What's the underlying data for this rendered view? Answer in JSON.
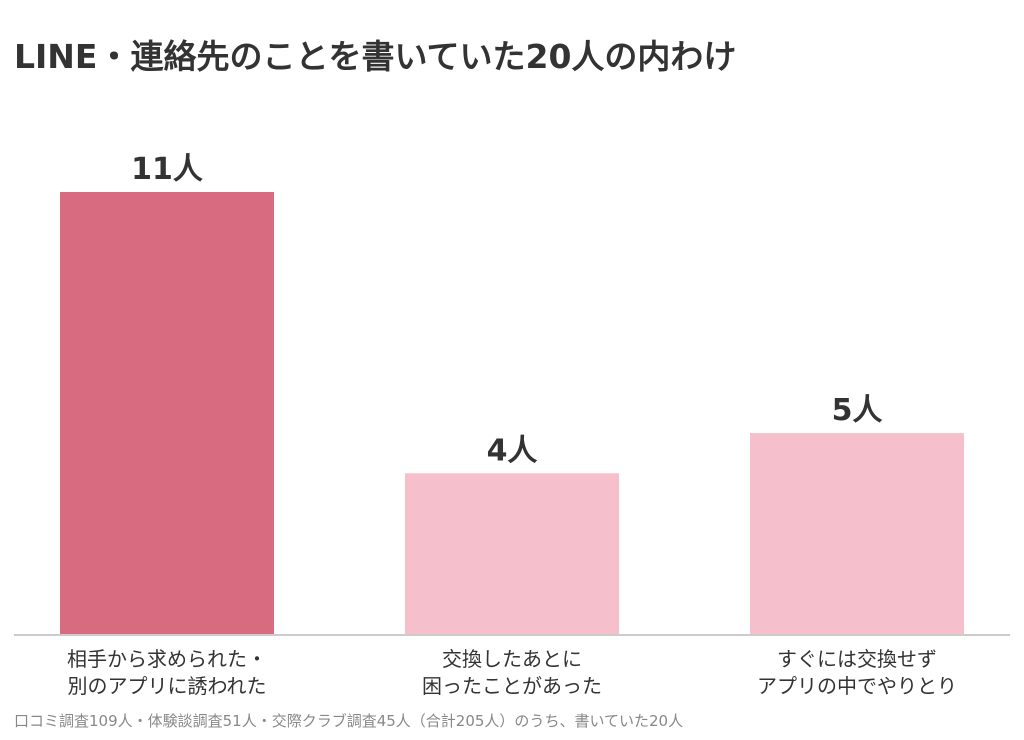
{
  "title": "LINE・連絡先のことを書いていた20人の内わけ",
  "footnote": "口コミ調査109人・体験談調査51人・交際クラブ調査45人（合計205人）のうち、書いていた20人",
  "colors": {
    "highlight_bar": "#d96b80",
    "normal_bar": "#f5c0cc",
    "axis": "#cccccc",
    "text": "#333333"
  },
  "chart_data": {
    "type": "bar",
    "categories": [
      [
        "相手から求められた・",
        "別のアプリに誘われた"
      ],
      [
        "交換したあとに",
        "困ったことがあった"
      ],
      [
        "すぐには交換せず",
        "アプリの中でやりとり"
      ]
    ],
    "values": [
      11,
      4,
      5
    ],
    "value_labels": [
      "11人",
      "4人",
      "5人"
    ],
    "highlight_index": 0,
    "ylim": [
      0,
      11
    ],
    "grid": false,
    "legend": "none"
  }
}
